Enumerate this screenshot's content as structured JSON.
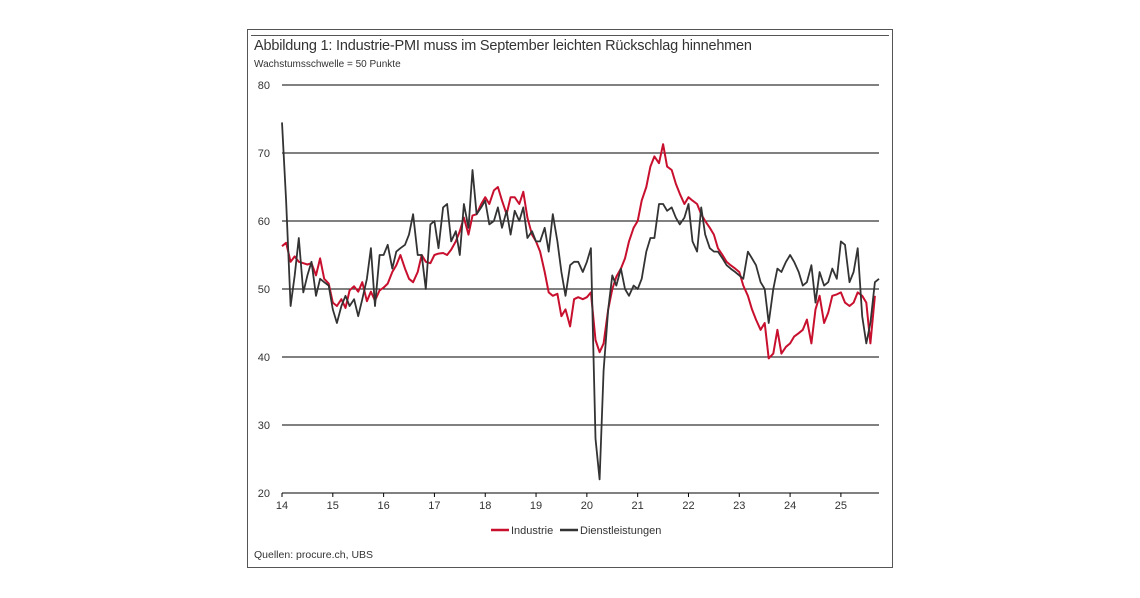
{
  "title": "Abbildung 1: Industrie-PMI muss im September leichten Rückschlag hinnehmen",
  "subtitle": "Wachstumsschwelle = 50 Punkte",
  "source": "Quellen: procure.ch, UBS",
  "colors": {
    "industrie": "#c8102e",
    "dienstleistungen": "#333333",
    "grid": "#000000"
  },
  "chart_data": {
    "type": "line",
    "xlabel": "",
    "ylabel": "",
    "ylim": [
      20,
      80
    ],
    "yticks": [
      20,
      30,
      40,
      50,
      60,
      70,
      80
    ],
    "xlim": [
      2014.0,
      2025.75
    ],
    "xticks": [
      {
        "x": 2014,
        "label": "14"
      },
      {
        "x": 2015,
        "label": "15"
      },
      {
        "x": 2016,
        "label": "16"
      },
      {
        "x": 2017,
        "label": "17"
      },
      {
        "x": 2018,
        "label": "18"
      },
      {
        "x": 2019,
        "label": "19"
      },
      {
        "x": 2020,
        "label": "20"
      },
      {
        "x": 2021,
        "label": "21"
      },
      {
        "x": 2022,
        "label": "22"
      },
      {
        "x": 2023,
        "label": "23"
      },
      {
        "x": 2024,
        "label": "24"
      },
      {
        "x": 2025,
        "label": "25"
      }
    ],
    "grid": "horizontal",
    "legend": "bottom",
    "series": [
      {
        "name": "Industrie",
        "x": [
          2014.0,
          2014.08,
          2014.17,
          2014.25,
          2014.33,
          2014.42,
          2014.5,
          2014.58,
          2014.67,
          2014.75,
          2014.83,
          2014.92,
          2015.0,
          2015.08,
          2015.17,
          2015.25,
          2015.33,
          2015.42,
          2015.5,
          2015.58,
          2015.67,
          2015.75,
          2015.83,
          2015.92,
          2016.0,
          2016.08,
          2016.17,
          2016.25,
          2016.33,
          2016.42,
          2016.5,
          2016.58,
          2016.67,
          2016.75,
          2016.83,
          2016.92,
          2017.0,
          2017.08,
          2017.17,
          2017.25,
          2017.33,
          2017.42,
          2017.5,
          2017.58,
          2017.67,
          2017.75,
          2017.83,
          2017.92,
          2018.0,
          2018.08,
          2018.17,
          2018.25,
          2018.33,
          2018.42,
          2018.5,
          2018.58,
          2018.67,
          2018.75,
          2018.83,
          2018.92,
          2019.0,
          2019.08,
          2019.17,
          2019.25,
          2019.33,
          2019.42,
          2019.5,
          2019.58,
          2019.67,
          2019.75,
          2019.83,
          2019.92,
          2020.0,
          2020.08,
          2020.17,
          2020.25,
          2020.33,
          2020.42,
          2020.5,
          2020.58,
          2020.67,
          2020.75,
          2020.83,
          2020.92,
          2021.0,
          2021.08,
          2021.17,
          2021.25,
          2021.33,
          2021.42,
          2021.5,
          2021.58,
          2021.67,
          2021.75,
          2021.83,
          2021.92,
          2022.0,
          2022.08,
          2022.17,
          2022.25,
          2022.33,
          2022.42,
          2022.5,
          2022.58,
          2022.67,
          2022.75,
          2022.83,
          2022.92,
          2023.0,
          2023.08,
          2023.17,
          2023.25,
          2023.33,
          2023.42,
          2023.5,
          2023.58,
          2023.67,
          2023.75,
          2023.83,
          2023.92,
          2024.0,
          2024.08,
          2024.17,
          2024.25,
          2024.33,
          2024.42,
          2024.5,
          2024.58,
          2024.67,
          2024.75,
          2024.83,
          2024.92,
          2025.0,
          2025.08,
          2025.17,
          2025.25,
          2025.33,
          2025.42,
          2025.5,
          2025.58,
          2025.67
        ],
        "values": [
          56.3,
          56.8,
          54.0,
          54.8,
          54.0,
          53.8,
          53.6,
          53.8,
          52.0,
          54.5,
          51.5,
          50.8,
          48.0,
          47.5,
          48.5,
          47.2,
          49.8,
          50.4,
          49.6,
          51.0,
          48.2,
          49.6,
          48.3,
          49.8,
          50.2,
          50.8,
          52.5,
          53.5,
          55.0,
          53.0,
          51.5,
          51.0,
          52.5,
          55.0,
          54.0,
          53.8,
          55.0,
          55.2,
          55.3,
          55.0,
          55.8,
          57.0,
          58.5,
          60.5,
          58.0,
          60.8,
          61.0,
          62.5,
          63.5,
          62.5,
          64.5,
          65.0,
          63.0,
          61.0,
          63.5,
          63.5,
          62.5,
          64.3,
          60.5,
          58.0,
          57.0,
          55.5,
          52.5,
          49.5,
          49.0,
          49.3,
          46.0,
          47.0,
          44.5,
          48.5,
          48.8,
          48.5,
          48.8,
          49.5,
          42.5,
          40.7,
          42.0,
          47.0,
          50.0,
          51.8,
          53.0,
          54.5,
          57.0,
          59.0,
          60.0,
          63.0,
          65.0,
          68.0,
          69.5,
          68.5,
          71.3,
          68.0,
          67.5,
          65.5,
          64.0,
          62.5,
          63.5,
          63.0,
          62.5,
          61.0,
          60.0,
          59.0,
          58.0,
          56.0,
          55.0,
          54.0,
          53.5,
          53.0,
          52.5,
          50.5,
          49.0,
          47.0,
          45.5,
          44.0,
          45.0,
          39.8,
          40.5,
          44.0,
          40.5,
          41.5,
          42.0,
          43.0,
          43.5,
          44.0,
          45.5,
          42.0,
          47.0,
          49.0,
          45.0,
          46.5,
          49.0,
          49.2,
          49.5,
          48.0,
          47.5,
          48.0,
          49.5,
          49.0,
          48.0,
          42.0,
          49.0
        ]
      },
      {
        "name": "Dienstleistungen",
        "x": [
          2014.0,
          2014.08,
          2014.17,
          2014.25,
          2014.33,
          2014.42,
          2014.5,
          2014.58,
          2014.67,
          2014.75,
          2014.83,
          2014.92,
          2015.0,
          2015.08,
          2015.17,
          2015.25,
          2015.33,
          2015.42,
          2015.5,
          2015.58,
          2015.67,
          2015.75,
          2015.83,
          2015.92,
          2016.0,
          2016.08,
          2016.17,
          2016.25,
          2016.33,
          2016.42,
          2016.5,
          2016.58,
          2016.67,
          2016.75,
          2016.83,
          2016.92,
          2017.0,
          2017.08,
          2017.17,
          2017.25,
          2017.33,
          2017.42,
          2017.5,
          2017.58,
          2017.67,
          2017.75,
          2017.83,
          2017.92,
          2018.0,
          2018.08,
          2018.17,
          2018.25,
          2018.33,
          2018.42,
          2018.5,
          2018.58,
          2018.67,
          2018.75,
          2018.83,
          2018.92,
          2019.0,
          2019.08,
          2019.17,
          2019.25,
          2019.33,
          2019.42,
          2019.5,
          2019.58,
          2019.67,
          2019.75,
          2019.83,
          2019.92,
          2020.0,
          2020.08,
          2020.17,
          2020.25,
          2020.33,
          2020.42,
          2020.5,
          2020.58,
          2020.67,
          2020.75,
          2020.83,
          2020.92,
          2021.0,
          2021.08,
          2021.17,
          2021.25,
          2021.33,
          2021.42,
          2021.5,
          2021.58,
          2021.67,
          2021.75,
          2021.83,
          2021.92,
          2022.0,
          2022.08,
          2022.17,
          2022.25,
          2022.33,
          2022.42,
          2022.5,
          2022.58,
          2022.67,
          2022.75,
          2022.83,
          2022.92,
          2023.0,
          2023.08,
          2023.17,
          2023.25,
          2023.33,
          2023.42,
          2023.5,
          2023.58,
          2023.67,
          2023.75,
          2023.83,
          2023.92,
          2024.0,
          2024.08,
          2024.17,
          2024.25,
          2024.33,
          2024.42,
          2024.5,
          2024.58,
          2024.67,
          2024.75,
          2024.83,
          2024.92,
          2025.0,
          2025.08,
          2025.17,
          2025.25,
          2025.33,
          2025.42,
          2025.5,
          2025.58,
          2025.67,
          2025.75
        ],
        "values": [
          74.5,
          63.0,
          47.5,
          52.0,
          57.5,
          49.5,
          52.0,
          54.0,
          49.0,
          51.5,
          51.0,
          50.5,
          47.0,
          45.0,
          47.5,
          49.0,
          47.5,
          48.5,
          46.0,
          48.5,
          51.5,
          56.0,
          47.5,
          55.0,
          55.0,
          56.5,
          53.0,
          55.5,
          56.0,
          56.5,
          58.0,
          61.0,
          55.0,
          55.0,
          50.0,
          59.5,
          60.0,
          56.0,
          62.0,
          62.5,
          57.0,
          58.5,
          55.0,
          62.5,
          59.0,
          67.5,
          61.0,
          62.0,
          63.0,
          59.5,
          60.0,
          62.0,
          59.0,
          61.5,
          58.0,
          61.5,
          60.0,
          62.0,
          57.5,
          58.5,
          57.0,
          57.0,
          59.0,
          55.5,
          61.0,
          57.0,
          52.5,
          49.0,
          53.5,
          54.0,
          54.0,
          52.5,
          54.0,
          56.0,
          28.0,
          22.0,
          38.0,
          47.0,
          52.0,
          50.5,
          53.0,
          50.0,
          49.0,
          50.5,
          50.0,
          51.5,
          55.5,
          57.5,
          57.5,
          62.5,
          62.5,
          61.5,
          62.0,
          60.5,
          59.5,
          60.5,
          62.5,
          57.0,
          55.5,
          62.0,
          58.0,
          56.0,
          55.5,
          55.5,
          54.5,
          53.5,
          53.0,
          52.5,
          52.0,
          51.5,
          55.5,
          54.5,
          53.5,
          51.0,
          50.0,
          45.0,
          50.0,
          53.0,
          52.5,
          54.0,
          55.0,
          54.0,
          52.5,
          50.5,
          51.0,
          53.5,
          48.0,
          52.5,
          50.5,
          51.0,
          53.0,
          51.5,
          57.0,
          56.5,
          51.0,
          52.5,
          56.0,
          46.0,
          42.0,
          45.0,
          51.0,
          51.5
        ]
      }
    ]
  }
}
